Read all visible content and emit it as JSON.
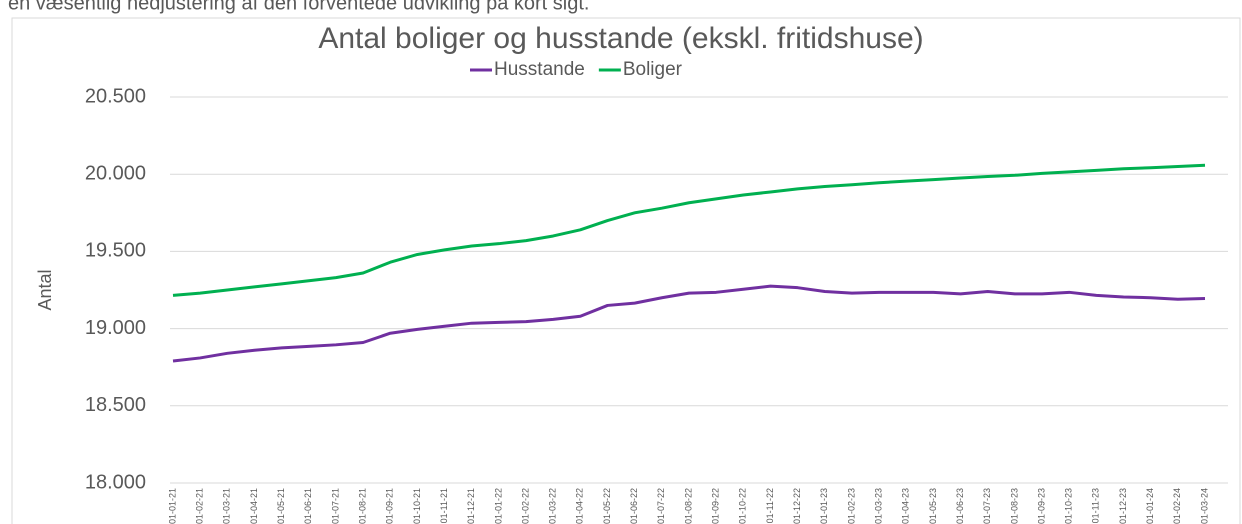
{
  "intro_text": "en væsentlig nedjustering af den forventede udvikling på kort sigt.",
  "chart_data": {
    "type": "line",
    "title": "Antal boliger og husstande (ekskl. fritidshuse)",
    "y_label": "Antal",
    "legend": "top",
    "grid": true,
    "categories": [
      "01-01-21",
      "01-02-21",
      "01-03-21",
      "01-04-21",
      "01-05-21",
      "01-06-21",
      "01-07-21",
      "01-08-21",
      "01-09-21",
      "01-10-21",
      "01-11-21",
      "01-12-21",
      "01-01-22",
      "01-02-22",
      "01-03-22",
      "01-04-22",
      "01-05-22",
      "01-06-22",
      "01-07-22",
      "01-08-22",
      "01-09-22",
      "01-10-22",
      "01-11-22",
      "01-12-22",
      "01-01-23",
      "01-02-23",
      "01-03-23",
      "01-04-23",
      "01-05-23",
      "01-06-23",
      "01-07-23",
      "01-08-23",
      "01-09-23",
      "01-10-23",
      "01-11-23",
      "01-12-23",
      "01-01-24",
      "01-02-24",
      "01-03-24"
    ],
    "series": [
      {
        "name": "Husstande",
        "color": "#7030a0",
        "values": [
          18790,
          18810,
          18840,
          18860,
          18875,
          18885,
          18895,
          18910,
          18970,
          18995,
          19015,
          19035,
          19040,
          19045,
          19060,
          19080,
          19150,
          19165,
          19200,
          19230,
          19235,
          19255,
          19275,
          19265,
          19240,
          19230,
          19235,
          19235,
          19235,
          19225,
          19240,
          19225,
          19225,
          19235,
          19215,
          19205,
          19200,
          19190,
          19195
        ]
      },
      {
        "name": "Boliger",
        "color": "#00b050",
        "values": [
          19215,
          19230,
          19250,
          19270,
          19290,
          19310,
          19330,
          19360,
          19430,
          19480,
          19510,
          19535,
          19550,
          19570,
          19600,
          19640,
          19700,
          19750,
          19780,
          19815,
          19840,
          19865,
          19885,
          19905,
          19920,
          19932,
          19945,
          19955,
          19965,
          19975,
          19985,
          19993,
          20005,
          20015,
          20025,
          20035,
          20042,
          20050,
          20058
        ]
      }
    ],
    "ylim": [
      18000,
      20500
    ],
    "yticks": [
      {
        "value": 18000,
        "label": "18.000"
      },
      {
        "value": 18500,
        "label": "18.500"
      },
      {
        "value": 19000,
        "label": "19.000"
      },
      {
        "value": 19500,
        "label": "19.500"
      },
      {
        "value": 20000,
        "label": "20.000"
      },
      {
        "value": 20500,
        "label": "20.500"
      }
    ]
  }
}
